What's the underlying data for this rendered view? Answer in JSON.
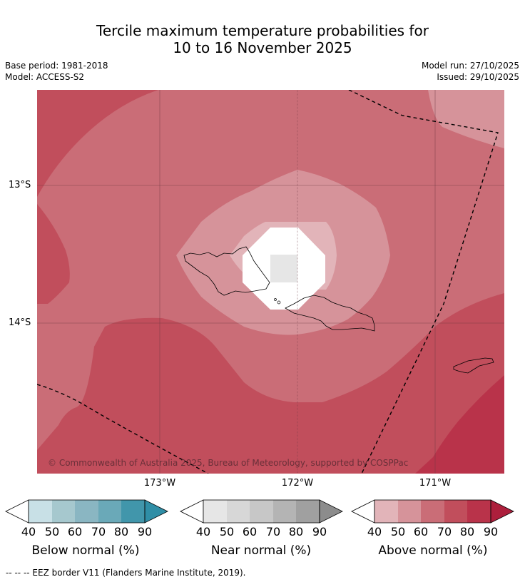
{
  "title": {
    "line1": "Tercile maximum temperature probabilities for",
    "line2": "10 to 16 November 2025"
  },
  "meta": {
    "base_period": "Base period: 1981-2018",
    "model": "Model: ACCESS-S2",
    "model_run": "Model run: 27/10/2025",
    "issued": "Issued: 29/10/2025"
  },
  "map": {
    "lat_labels": [
      "13°S",
      "14°S"
    ],
    "lon_labels": [
      "173°W",
      "172°W",
      "171°W"
    ],
    "copyright": "© Commonwealth of Australia 2025, Bureau of Meteorology, supported by COSPPac"
  },
  "colorbars": [
    {
      "label": "Below normal (%)",
      "ticks": [
        "40",
        "50",
        "60",
        "70",
        "80",
        "90"
      ],
      "colors": [
        "#ffffff",
        "#c8e0e6",
        "#a6c8ce",
        "#8ab6c2",
        "#6aa9b8",
        "#4196ab",
        "#2f8ea6"
      ]
    },
    {
      "label": "Near normal (%)",
      "ticks": [
        "40",
        "50",
        "60",
        "70",
        "80",
        "90"
      ],
      "colors": [
        "#ffffff",
        "#e6e6e6",
        "#d7d7d7",
        "#c7c7c7",
        "#b4b4b4",
        "#a0a0a0",
        "#8c8c8c"
      ]
    },
    {
      "label": "Above normal (%)",
      "ticks": [
        "40",
        "50",
        "60",
        "70",
        "80",
        "90"
      ],
      "colors": [
        "#ffffff",
        "#e2b4b9",
        "#d6939a",
        "#ca6d77",
        "#c14e5c",
        "#b9334a",
        "#ad1f3c"
      ]
    }
  ],
  "footer": "--  --  -- EEZ border V11 (Flanders Marine Institute, 2019)."
}
